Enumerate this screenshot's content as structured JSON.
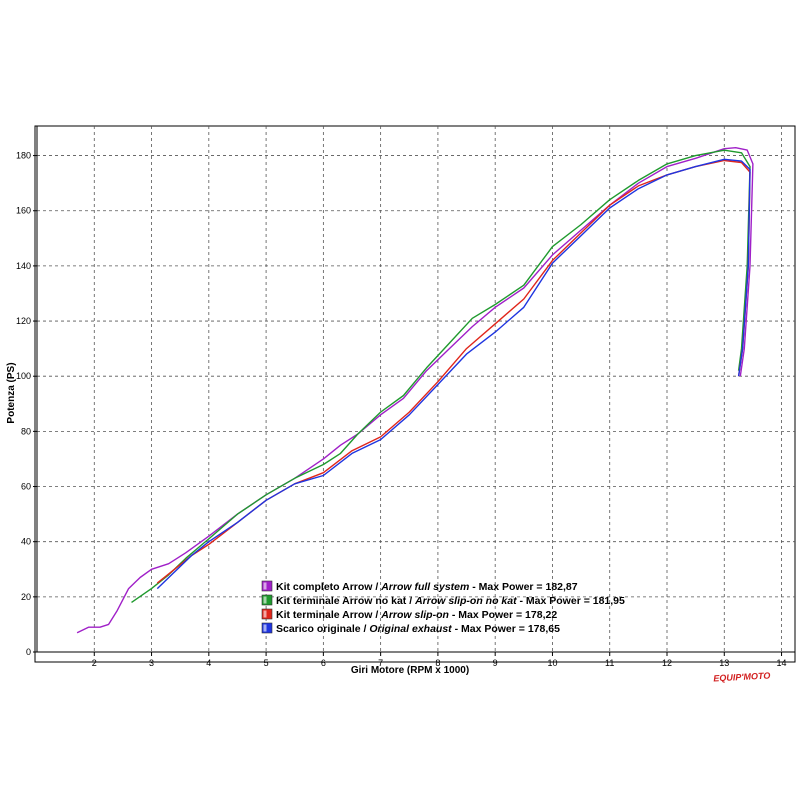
{
  "chart_data": {
    "type": "line",
    "xlabel": "Giri Motore (RPM x 1000)",
    "ylabel": "Potenza (PS)",
    "xlim": [
      1.0,
      14.2
    ],
    "ylim": [
      0,
      190
    ],
    "x_ticks": [
      2,
      3,
      4,
      5,
      6,
      7,
      8,
      9,
      10,
      11,
      12,
      13,
      14
    ],
    "y_ticks": [
      0,
      20,
      40,
      60,
      80,
      100,
      120,
      140,
      160,
      180
    ],
    "grid": true,
    "legend_position": "bottom-center",
    "series": [
      {
        "name": "Kit completo Arrow / Arrow full system - Max Power = 182,87",
        "label_parts": [
          "Kit completo Arrow",
          " / ",
          "Arrow full system",
          " - Max Power = 182,87"
        ],
        "color": "#a020c8",
        "points": [
          [
            1.7,
            7
          ],
          [
            1.9,
            9
          ],
          [
            2.1,
            9
          ],
          [
            2.25,
            10
          ],
          [
            2.4,
            15
          ],
          [
            2.6,
            23
          ],
          [
            2.8,
            27
          ],
          [
            3.0,
            30
          ],
          [
            3.3,
            32
          ],
          [
            3.6,
            36
          ],
          [
            4.0,
            42
          ],
          [
            4.5,
            50
          ],
          [
            5.0,
            57
          ],
          [
            5.5,
            63
          ],
          [
            6.0,
            70
          ],
          [
            6.3,
            75
          ],
          [
            6.6,
            79
          ],
          [
            7.0,
            86
          ],
          [
            7.4,
            92
          ],
          [
            7.8,
            102
          ],
          [
            8.2,
            110
          ],
          [
            8.6,
            118
          ],
          [
            9.0,
            125
          ],
          [
            9.5,
            132
          ],
          [
            10.0,
            144
          ],
          [
            10.5,
            153
          ],
          [
            11.0,
            162
          ],
          [
            11.5,
            170
          ],
          [
            12.0,
            176
          ],
          [
            12.5,
            179
          ],
          [
            13.0,
            182.5
          ],
          [
            13.2,
            182.87
          ],
          [
            13.4,
            182
          ],
          [
            13.5,
            177
          ],
          [
            13.45,
            140
          ],
          [
            13.35,
            110
          ],
          [
            13.28,
            100
          ]
        ]
      },
      {
        "name": "Kit terminale Arrow no kat / Arrow slip-on no kat - Max Power = 181,95",
        "label_parts": [
          "Kit terminale Arrow no kat",
          " / ",
          "Arrow slip-on no kat",
          " - Max Power = 181,95"
        ],
        "color": "#1f9a2e",
        "points": [
          [
            2.65,
            18
          ],
          [
            3.0,
            23
          ],
          [
            3.3,
            28
          ],
          [
            3.6,
            34
          ],
          [
            4.0,
            41
          ],
          [
            4.5,
            50
          ],
          [
            5.0,
            57
          ],
          [
            5.5,
            63
          ],
          [
            6.0,
            68
          ],
          [
            6.3,
            72
          ],
          [
            6.6,
            79
          ],
          [
            7.0,
            87
          ],
          [
            7.4,
            93
          ],
          [
            7.8,
            103
          ],
          [
            8.2,
            112
          ],
          [
            8.6,
            121
          ],
          [
            9.0,
            126
          ],
          [
            9.5,
            133
          ],
          [
            10.0,
            147
          ],
          [
            10.5,
            155
          ],
          [
            11.0,
            164
          ],
          [
            11.5,
            171
          ],
          [
            12.0,
            177
          ],
          [
            12.5,
            180
          ],
          [
            13.0,
            181.95
          ],
          [
            13.3,
            181
          ],
          [
            13.45,
            176
          ],
          [
            13.4,
            140
          ],
          [
            13.3,
            110
          ],
          [
            13.25,
            102
          ]
        ]
      },
      {
        "name": "Kit terminale Arrow / Arrow slip-on - Max Power = 178,22",
        "label_parts": [
          "Kit terminale Arrow",
          " / ",
          "Arrow slip-on",
          " - Max Power = 178,22"
        ],
        "color": "#e0261b",
        "points": [
          [
            3.1,
            25
          ],
          [
            3.4,
            30
          ],
          [
            3.7,
            35
          ],
          [
            4.0,
            39
          ],
          [
            4.5,
            47
          ],
          [
            5.0,
            55
          ],
          [
            5.5,
            61
          ],
          [
            6.0,
            65
          ],
          [
            6.5,
            73
          ],
          [
            7.0,
            78
          ],
          [
            7.5,
            87
          ],
          [
            8.0,
            98
          ],
          [
            8.5,
            110
          ],
          [
            9.0,
            119
          ],
          [
            9.5,
            128
          ],
          [
            10.0,
            142
          ],
          [
            10.5,
            152
          ],
          [
            11.0,
            162
          ],
          [
            11.5,
            169
          ],
          [
            12.0,
            173
          ],
          [
            12.5,
            176
          ],
          [
            13.0,
            178.22
          ],
          [
            13.3,
            177.5
          ],
          [
            13.45,
            174
          ],
          [
            13.42,
            140
          ],
          [
            13.32,
            110
          ],
          [
            13.25,
            100
          ]
        ]
      },
      {
        "name": "Scarico originale / Original exhaust - Max Power = 178,65",
        "label_parts": [
          "Scarico originale",
          " / ",
          "Original exhaust",
          " - Max Power = 178,65"
        ],
        "color": "#1f35e0",
        "points": [
          [
            3.1,
            23
          ],
          [
            3.4,
            29
          ],
          [
            3.7,
            35
          ],
          [
            4.0,
            40
          ],
          [
            4.5,
            47
          ],
          [
            5.0,
            55
          ],
          [
            5.5,
            61
          ],
          [
            6.0,
            64
          ],
          [
            6.5,
            72
          ],
          [
            7.0,
            77
          ],
          [
            7.5,
            86
          ],
          [
            8.0,
            97
          ],
          [
            8.5,
            108
          ],
          [
            9.0,
            116
          ],
          [
            9.5,
            125
          ],
          [
            10.0,
            141
          ],
          [
            10.5,
            151
          ],
          [
            11.0,
            161
          ],
          [
            11.5,
            168
          ],
          [
            12.0,
            173
          ],
          [
            12.5,
            176
          ],
          [
            13.0,
            178.65
          ],
          [
            13.3,
            178
          ],
          [
            13.45,
            175
          ],
          [
            13.42,
            140
          ],
          [
            13.32,
            110
          ],
          [
            13.25,
            100
          ]
        ]
      }
    ]
  },
  "watermark": "EQUIP'MOTO"
}
